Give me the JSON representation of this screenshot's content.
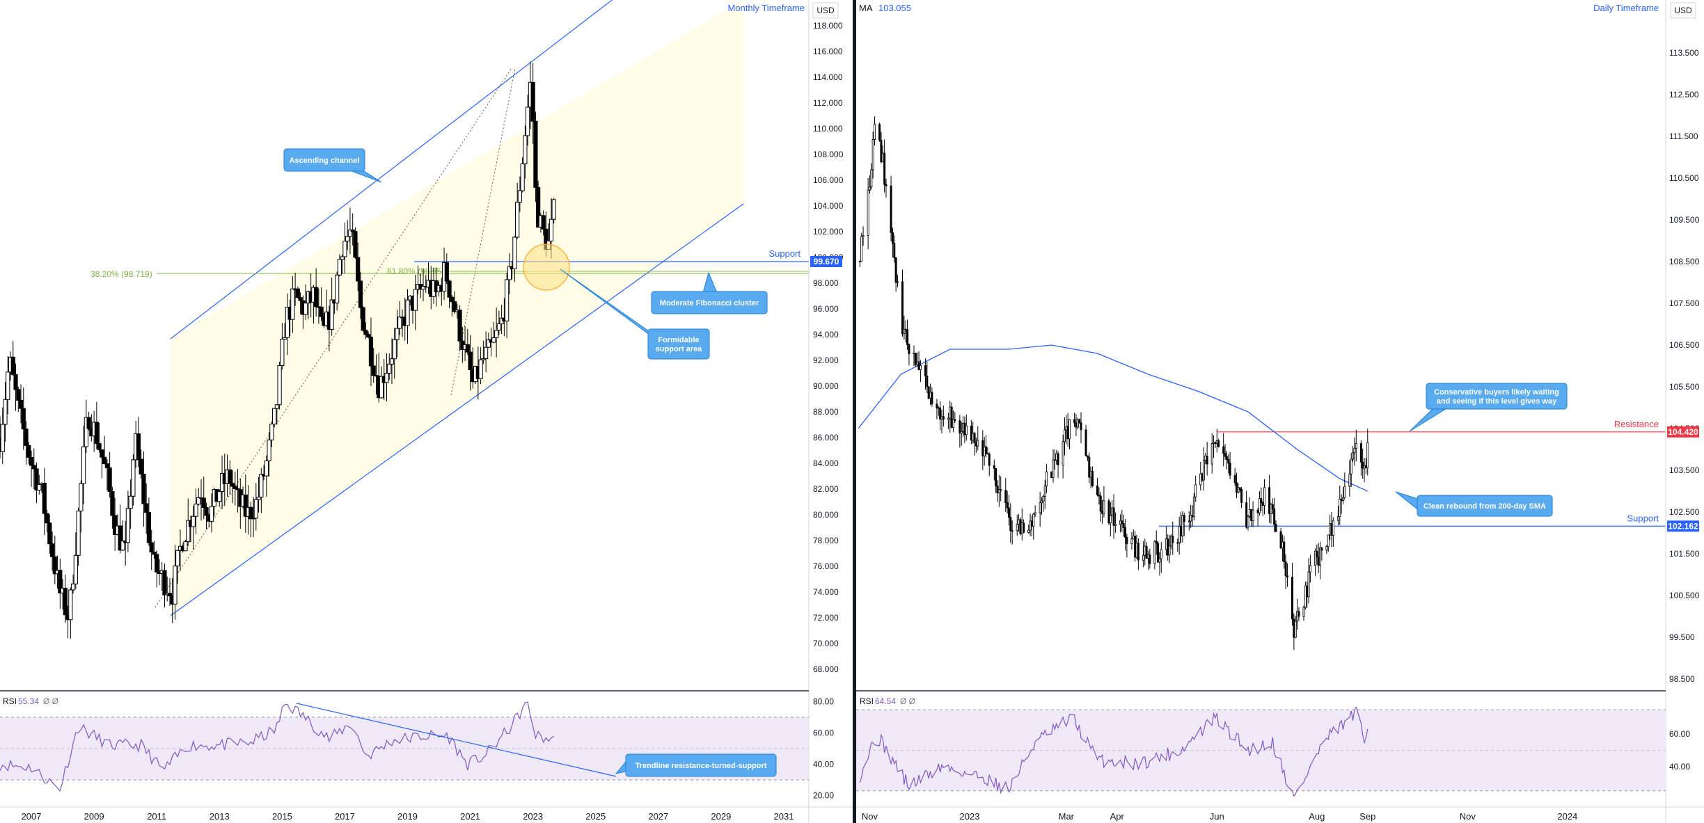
{
  "colors": {
    "candle_body": "#000000",
    "channel_line": "#2962ff",
    "channel_fill": "#fffde7",
    "fib_line": "#7cb342",
    "support_line": "#2962ff",
    "resistance_line": "#f23645",
    "ma_line": "#2962ff",
    "rsi_line": "#7e57c2",
    "rsi_band": "#efe9f7",
    "callout_bg": "#5aaaf0",
    "callout_border": "#1e7fd8",
    "circle_fill": "#ffe082",
    "circle_stroke": "#ffa726",
    "label_blue": "#2962ff",
    "label_red": "#f23645"
  },
  "left": {
    "timeframe": "Monthly Timeframe",
    "currency": "USD",
    "yticks": [
      "118.000",
      "116.000",
      "114.000",
      "112.000",
      "110.000",
      "108.000",
      "106.000",
      "104.000",
      "102.000",
      "100.000",
      "98.000",
      "96.000",
      "94.000",
      "92.000",
      "90.000",
      "88.000",
      "86.000",
      "84.000",
      "82.000",
      "80.000",
      "78.000",
      "76.000",
      "74.000",
      "72.000",
      "70.000",
      "68.000"
    ],
    "xticks": [
      "2007",
      "2009",
      "2011",
      "2013",
      "2015",
      "2017",
      "2019",
      "2021",
      "2023",
      "2025",
      "2027",
      "2029",
      "2031"
    ],
    "price_badge": "99.670",
    "support_label": "Support",
    "fib_382_label": "38.20% (98.719)",
    "fib_618_label": "61.80% (98.95",
    "callouts": {
      "ascending_channel": "Ascending channel",
      "fib_cluster": "Moderate Fibonacci cluster",
      "formidable_line1": "Formidable",
      "formidable_line2": "support area",
      "trendline": "Trendline resistance-turned-support"
    },
    "rsi_title": "RSI",
    "rsi_value": "55.34",
    "rsi_nulls": "Ø  Ø",
    "rsi_ticks": [
      "80.00",
      "60.00",
      "40.00",
      "20.00"
    ]
  },
  "right": {
    "ma_title": "MA",
    "ma_value": "103.055",
    "timeframe": "Daily Timeframe",
    "currency": "USD",
    "yticks": [
      "113.500",
      "112.500",
      "111.500",
      "110.500",
      "109.500",
      "108.500",
      "107.500",
      "106.500",
      "105.500",
      "104.500",
      "103.500",
      "102.500",
      "101.500",
      "100.500",
      "99.500",
      "98.500"
    ],
    "xticks": [
      "Nov",
      "2023",
      "Mar",
      "Apr",
      "Jun",
      "Aug",
      "Sep",
      "Nov",
      "2024"
    ],
    "resistance_label": "Resistance",
    "resistance_badge": "104.420",
    "support_label": "Support",
    "support_badge": "102.162",
    "callouts": {
      "conservative_line1": "Conservative buyers likely waiting",
      "conservative_line2": "and seeing if this level gives way",
      "rebound": "Clean rebound from 200-day SMA"
    },
    "rsi_title": "RSI",
    "rsi_value": "64.54",
    "rsi_nulls": "Ø  Ø",
    "rsi_ticks": [
      "60.00",
      "40.00"
    ]
  },
  "chart_data": [
    {
      "type": "candlestick",
      "title": "",
      "timeframe": "Monthly Timeframe",
      "currency": "USD",
      "x_range": [
        "2006",
        "2031"
      ],
      "ylim": [
        67,
        119
      ],
      "last_price": 99.67,
      "close_path": [
        [
          2006.0,
          86
        ],
        [
          2006.3,
          92
        ],
        [
          2006.6,
          88
        ],
        [
          2007.0,
          84
        ],
        [
          2007.3,
          82
        ],
        [
          2007.6,
          78
        ],
        [
          2007.9,
          74
        ],
        [
          2008.2,
          72
        ],
        [
          2008.5,
          80
        ],
        [
          2008.8,
          88
        ],
        [
          2009.1,
          86
        ],
        [
          2009.4,
          83
        ],
        [
          2009.7,
          79
        ],
        [
          2010.0,
          77
        ],
        [
          2010.3,
          86
        ],
        [
          2010.6,
          81
        ],
        [
          2010.9,
          76
        ],
        [
          2011.2,
          75
        ],
        [
          2011.5,
          74
        ],
        [
          2011.8,
          78
        ],
        [
          2012.1,
          80
        ],
        [
          2012.4,
          82
        ],
        [
          2012.7,
          80
        ],
        [
          2013.0,
          82
        ],
        [
          2013.3,
          83
        ],
        [
          2013.6,
          81
        ],
        [
          2013.9,
          80
        ],
        [
          2014.2,
          81
        ],
        [
          2014.5,
          84
        ],
        [
          2014.8,
          88
        ],
        [
          2015.1,
          95
        ],
        [
          2015.4,
          97
        ],
        [
          2015.7,
          96
        ],
        [
          2016.0,
          97
        ],
        [
          2016.3,
          94
        ],
        [
          2016.6,
          96
        ],
        [
          2016.9,
          101
        ],
        [
          2017.2,
          102
        ],
        [
          2017.5,
          96
        ],
        [
          2017.8,
          93
        ],
        [
          2018.1,
          90
        ],
        [
          2018.4,
          92
        ],
        [
          2018.7,
          94
        ],
        [
          2019.0,
          96
        ],
        [
          2019.3,
          97
        ],
        [
          2019.6,
          98
        ],
        [
          2019.9,
          97
        ],
        [
          2020.2,
          99
        ],
        [
          2020.5,
          96
        ],
        [
          2020.8,
          93
        ],
        [
          2021.1,
          90
        ],
        [
          2021.4,
          92
        ],
        [
          2021.7,
          93
        ],
        [
          2022.0,
          95
        ],
        [
          2022.3,
          99
        ],
        [
          2022.6,
          106
        ],
        [
          2022.8,
          111
        ],
        [
          2022.95,
          114
        ],
        [
          2023.1,
          104
        ],
        [
          2023.3,
          102
        ],
        [
          2023.5,
          101
        ],
        [
          2023.7,
          104
        ]
      ],
      "series": [
        {
          "name": "RSI",
          "last": 55.34,
          "ylim": [
            15,
            85
          ],
          "bands": [
            30,
            70
          ],
          "values": [
            [
              2006,
              40
            ],
            [
              2007,
              38
            ],
            [
              2007.9,
              24
            ],
            [
              2008.5,
              64
            ],
            [
              2009.5,
              52
            ],
            [
              2010.5,
              52
            ],
            [
              2011.2,
              36
            ],
            [
              2012,
              52
            ],
            [
              2013,
              52
            ],
            [
              2014,
              54
            ],
            [
              2014.8,
              62
            ],
            [
              2015.1,
              79
            ],
            [
              2015.6,
              72
            ],
            [
              2016.5,
              56
            ],
            [
              2017.2,
              66
            ],
            [
              2017.7,
              45
            ],
            [
              2018.5,
              55
            ],
            [
              2019.5,
              58
            ],
            [
              2020.3,
              58
            ],
            [
              2020.9,
              40
            ],
            [
              2021.5,
              46
            ],
            [
              2022.3,
              64
            ],
            [
              2022.8,
              79
            ],
            [
              2023.1,
              58
            ],
            [
              2023.7,
              55
            ]
          ]
        }
      ],
      "annotations": [
        "Ascending channel",
        "Moderate Fibonacci cluster",
        "Formidable support area",
        "Trendline resistance-turned-support",
        "Support",
        "38.20% (98.719)",
        "61.80% (98.95"
      ]
    },
    {
      "type": "candlestick",
      "title": "",
      "timeframe": "Daily Timeframe",
      "currency": "USD",
      "x_range": [
        "2022-10-25",
        "2024-03-01"
      ],
      "ylim": [
        98.3,
        114.0
      ],
      "resistance": 104.42,
      "support": 102.162,
      "close_path": [
        [
          "2022-10-25",
          108.5
        ],
        [
          "2022-11-01",
          110.5
        ],
        [
          "2022-11-05",
          112.0
        ],
        [
          "2022-11-12",
          110.0
        ],
        [
          "2022-11-20",
          107.0
        ],
        [
          "2022-11-30",
          106.0
        ],
        [
          "2022-12-10",
          105.0
        ],
        [
          "2022-12-20",
          104.8
        ],
        [
          "2023-01-01",
          104.2
        ],
        [
          "2023-01-15",
          103.6
        ],
        [
          "2023-01-25",
          102.3
        ],
        [
          "2023-02-05",
          102.0
        ],
        [
          "2023-02-20",
          103.5
        ],
        [
          "2023-03-05",
          104.7
        ],
        [
          "2023-03-10",
          104.4
        ],
        [
          "2023-03-20",
          102.8
        ],
        [
          "2023-04-01",
          102.2
        ],
        [
          "2023-04-15",
          101.5
        ],
        [
          "2023-05-01",
          101.6
        ],
        [
          "2023-05-15",
          102.4
        ],
        [
          "2023-05-25",
          103.6
        ],
        [
          "2023-05-31",
          104.2
        ],
        [
          "2023-06-10",
          103.3
        ],
        [
          "2023-06-20",
          102.3
        ],
        [
          "2023-07-01",
          102.9
        ],
        [
          "2023-07-12",
          101.4
        ],
        [
          "2023-07-18",
          99.7
        ],
        [
          "2023-07-30",
          101.2
        ],
        [
          "2023-08-10",
          102.2
        ],
        [
          "2023-08-20",
          103.3
        ],
        [
          "2023-08-25",
          104.1
        ],
        [
          "2023-08-30",
          103.4
        ],
        [
          "2023-09-01",
          104.2
        ]
      ],
      "series": [
        {
          "name": "MA",
          "last": 103.055,
          "values": [
            [
              "2022-10-25",
              104.5
            ],
            [
              "2022-11-20",
              105.8
            ],
            [
              "2022-12-20",
              106.4
            ],
            [
              "2023-01-25",
              106.4
            ],
            [
              "2023-02-20",
              106.5
            ],
            [
              "2023-03-20",
              106.3
            ],
            [
              "2023-04-20",
              105.8
            ],
            [
              "2023-05-20",
              105.4
            ],
            [
              "2023-06-20",
              104.9
            ],
            [
              "2023-07-20",
              104.0
            ],
            [
              "2023-08-15",
              103.3
            ],
            [
              "2023-09-01",
              103.0
            ]
          ]
        },
        {
          "name": "RSI",
          "last": 64.54,
          "ylim": [
            15,
            85
          ],
          "bands": [
            30,
            70
          ],
          "values": [
            [
              "2022-10-25",
              32
            ],
            [
              "2022-11-05",
              60
            ],
            [
              "2022-11-25",
              28
            ],
            [
              "2022-12-15",
              40
            ],
            [
              "2023-01-10",
              33
            ],
            [
              "2023-01-25",
              26
            ],
            [
              "2023-02-10",
              55
            ],
            [
              "2023-03-05",
              70
            ],
            [
              "2023-03-20",
              44
            ],
            [
              "2023-04-15",
              42
            ],
            [
              "2023-05-10",
              50
            ],
            [
              "2023-05-31",
              70
            ],
            [
              "2023-06-20",
              50
            ],
            [
              "2023-07-05",
              55
            ],
            [
              "2023-07-18",
              20
            ],
            [
              "2023-08-05",
              55
            ],
            [
              "2023-08-25",
              73
            ],
            [
              "2023-08-30",
              55
            ],
            [
              "2023-09-01",
              64.5
            ]
          ]
        }
      ],
      "annotations": [
        "Resistance",
        "Support",
        "Conservative buyers likely waiting and seeing if this level gives way",
        "Clean rebound from 200-day SMA"
      ]
    }
  ]
}
